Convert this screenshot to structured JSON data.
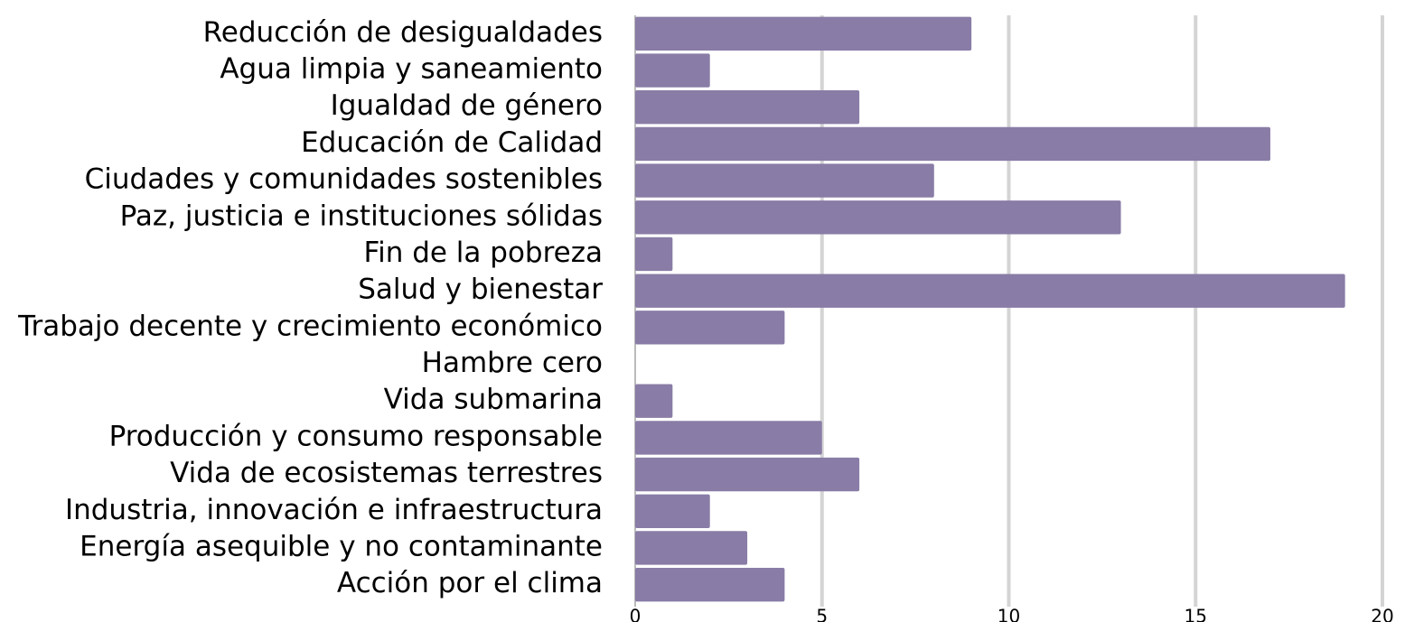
{
  "chart_data": {
    "type": "bar",
    "orientation": "horizontal",
    "categories": [
      "Reducción de desigualdades",
      "Agua limpia y saneamiento",
      "Igualdad de género",
      "Educación de Calidad",
      "Ciudades y comunidades sostenibles",
      "Paz, justicia e instituciones sólidas",
      "Fin de la pobreza",
      "Salud y bienestar",
      "Trabajo decente y crecimiento económico",
      "Hambre cero",
      "Vida submarina",
      "Producción y consumo responsable",
      "Vida de ecosistemas terrestres",
      "Industria, innovación e infraestructura",
      "Energía asequible y no contaminante",
      "Acción por el clima"
    ],
    "values": [
      9,
      2,
      6,
      17,
      8,
      13,
      1,
      19,
      4,
      0,
      1,
      5,
      6,
      2,
      3,
      4
    ],
    "color": "#897ca6",
    "xlim": [
      0,
      20
    ],
    "xticks": [
      0,
      5,
      10,
      15,
      20
    ],
    "grid": true
  }
}
